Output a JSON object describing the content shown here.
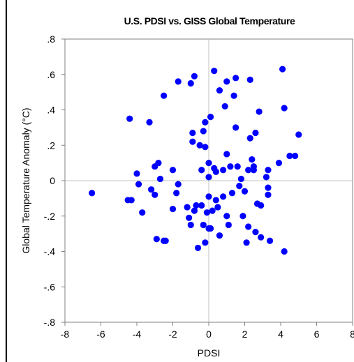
{
  "chart_data": {
    "type": "scatter",
    "title": "U.S. PDSI vs. GISS Global Temperature",
    "xlabel": "PDSI",
    "ylabel": "Global Temperature Anomaly (°C)",
    "xlim": [
      -8,
      8
    ],
    "ylim": [
      -0.8,
      0.8
    ],
    "x_ticks": [
      "-8",
      "-6",
      "-4",
      "-2",
      "0",
      "2",
      "4",
      "6",
      "8"
    ],
    "y_ticks": [
      ".8",
      ".6",
      ".4",
      ".2",
      "0",
      "-.2",
      "-.4",
      "-.6",
      "-.8"
    ],
    "grid": false,
    "zero_lines": true,
    "marker_color": "#0000FF",
    "points": [
      {
        "x": -6.5,
        "y": -0.07
      },
      {
        "x": -4.4,
        "y": 0.35
      },
      {
        "x": -4.5,
        "y": -0.11
      },
      {
        "x": -4.3,
        "y": -0.11
      },
      {
        "x": -4.0,
        "y": 0.04
      },
      {
        "x": -3.9,
        "y": -0.02
      },
      {
        "x": -3.7,
        "y": -0.18
      },
      {
        "x": -3.3,
        "y": 0.33
      },
      {
        "x": -3.2,
        "y": -0.05
      },
      {
        "x": -3.0,
        "y": 0.08
      },
      {
        "x": -3.0,
        "y": -0.08
      },
      {
        "x": -2.8,
        "y": 0.1
      },
      {
        "x": -2.9,
        "y": -0.33
      },
      {
        "x": -2.7,
        "y": 0.01
      },
      {
        "x": -2.5,
        "y": 0.48
      },
      {
        "x": -2.5,
        "y": -0.34
      },
      {
        "x": -2.4,
        "y": -0.34
      },
      {
        "x": -2.0,
        "y": 0.06
      },
      {
        "x": -2.0,
        "y": -0.16
      },
      {
        "x": -1.8,
        "y": -0.07
      },
      {
        "x": -1.7,
        "y": -0.02
      },
      {
        "x": -1.7,
        "y": 0.56
      },
      {
        "x": -1.2,
        "y": -0.15
      },
      {
        "x": -1.0,
        "y": 0.55
      },
      {
        "x": -1.1,
        "y": -0.21
      },
      {
        "x": -1.0,
        "y": -0.25
      },
      {
        "x": -0.9,
        "y": 0.27
      },
      {
        "x": -0.9,
        "y": 0.22
      },
      {
        "x": -0.8,
        "y": 0.59
      },
      {
        "x": -0.8,
        "y": -0.17
      },
      {
        "x": -0.7,
        "y": -0.14
      },
      {
        "x": -0.6,
        "y": -0.38
      },
      {
        "x": -0.5,
        "y": 0.2
      },
      {
        "x": -0.4,
        "y": 0.06
      },
      {
        "x": -0.4,
        "y": -0.14
      },
      {
        "x": -0.3,
        "y": 0.28
      },
      {
        "x": -0.3,
        "y": -0.25
      },
      {
        "x": -0.2,
        "y": 0.19
      },
      {
        "x": -0.2,
        "y": 0.33
      },
      {
        "x": -0.2,
        "y": -0.35
      },
      {
        "x": -0.1,
        "y": -0.18
      },
      {
        "x": 0.0,
        "y": 0.1
      },
      {
        "x": 0.0,
        "y": 0.02
      },
      {
        "x": 0.0,
        "y": -0.09
      },
      {
        "x": 0.0,
        "y": -0.27
      },
      {
        "x": 0.1,
        "y": 0.36
      },
      {
        "x": 0.1,
        "y": -0.27
      },
      {
        "x": 0.2,
        "y": -0.17
      },
      {
        "x": 0.3,
        "y": 0.62
      },
      {
        "x": 0.3,
        "y": 0.07
      },
      {
        "x": 0.4,
        "y": 0.05
      },
      {
        "x": 0.4,
        "y": -0.11
      },
      {
        "x": 0.5,
        "y": -0.15
      },
      {
        "x": 0.6,
        "y": 0.51
      },
      {
        "x": 0.6,
        "y": -0.31
      },
      {
        "x": 0.8,
        "y": 0.06
      },
      {
        "x": 0.8,
        "y": -0.09
      },
      {
        "x": 0.9,
        "y": 0.42
      },
      {
        "x": 1.0,
        "y": 0.56
      },
      {
        "x": 1.0,
        "y": 0.15
      },
      {
        "x": 1.0,
        "y": -0.2
      },
      {
        "x": 1.1,
        "y": -0.25
      },
      {
        "x": 1.2,
        "y": 0.08
      },
      {
        "x": 1.3,
        "y": -0.07
      },
      {
        "x": 1.4,
        "y": 0.48
      },
      {
        "x": 1.5,
        "y": 0.58
      },
      {
        "x": 1.5,
        "y": 0.3
      },
      {
        "x": 1.6,
        "y": 0.08
      },
      {
        "x": 1.7,
        "y": -0.03
      },
      {
        "x": 1.8,
        "y": 0.01
      },
      {
        "x": 1.9,
        "y": -0.2
      },
      {
        "x": 2.0,
        "y": -0.06
      },
      {
        "x": 2.1,
        "y": -0.35
      },
      {
        "x": 2.2,
        "y": 0.06
      },
      {
        "x": 2.2,
        "y": -0.26
      },
      {
        "x": 2.3,
        "y": 0.57
      },
      {
        "x": 2.3,
        "y": 0.24
      },
      {
        "x": 2.4,
        "y": 0.12
      },
      {
        "x": 2.5,
        "y": 0.06
      },
      {
        "x": 2.5,
        "y": 0.08
      },
      {
        "x": 2.6,
        "y": 0.27
      },
      {
        "x": 2.6,
        "y": -0.29
      },
      {
        "x": 2.7,
        "y": -0.13
      },
      {
        "x": 2.8,
        "y": 0.39
      },
      {
        "x": 2.9,
        "y": -0.14
      },
      {
        "x": 2.9,
        "y": -0.32
      },
      {
        "x": 3.2,
        "y": 0.02
      },
      {
        "x": 3.3,
        "y": 0.06
      },
      {
        "x": 3.3,
        "y": -0.04
      },
      {
        "x": 3.3,
        "y": -0.08
      },
      {
        "x": 3.4,
        "y": -0.34
      },
      {
        "x": 3.9,
        "y": 0.1
      },
      {
        "x": 4.1,
        "y": 0.63
      },
      {
        "x": 4.2,
        "y": 0.41
      },
      {
        "x": 4.2,
        "y": -0.4
      },
      {
        "x": 4.5,
        "y": 0.14
      },
      {
        "x": 4.8,
        "y": 0.14
      },
      {
        "x": 5.0,
        "y": 0.26
      }
    ]
  }
}
